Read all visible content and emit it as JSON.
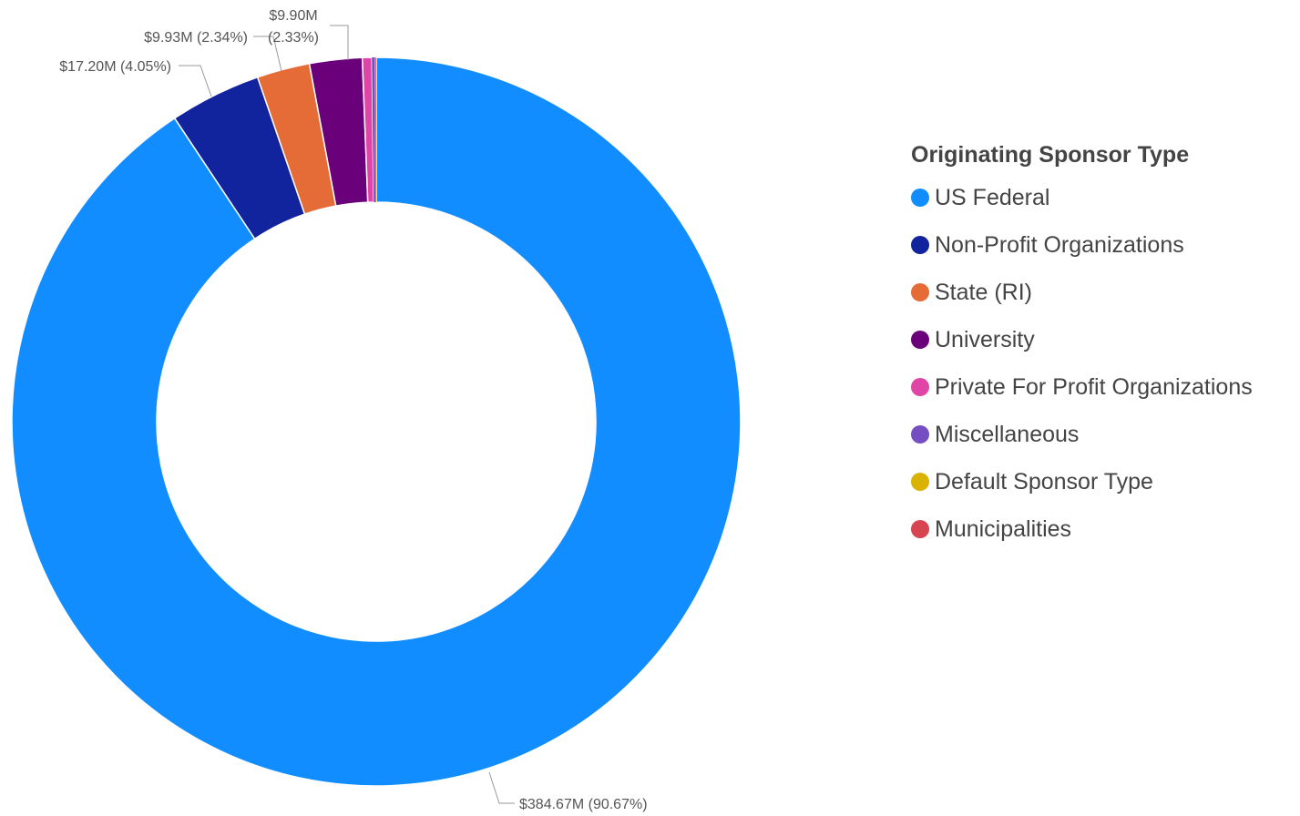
{
  "chart_data": {
    "type": "pie",
    "donut": true,
    "legend_title": "Originating Sponsor Type",
    "legend_position": "right",
    "series": [
      {
        "name": "US Federal",
        "value": 384.67,
        "percent": 90.67,
        "color": "#118DFF",
        "label": "$384.67M (90.67%)"
      },
      {
        "name": "Non-Profit Organizations",
        "value": 17.2,
        "percent": 4.05,
        "color": "#12239E",
        "label": "$17.20M (4.05%)"
      },
      {
        "name": "State (RI)",
        "value": 9.93,
        "percent": 2.34,
        "color": "#E66C37",
        "label": "$9.93M (2.34%)"
      },
      {
        "name": "University",
        "value": 9.9,
        "percent": 2.33,
        "color": "#6B007B",
        "label_lines": [
          "$9.90M",
          "(2.33%)"
        ]
      },
      {
        "name": "Private For Profit Organizations",
        "percent": 0.42,
        "color": "#E044A7"
      },
      {
        "name": "Miscellaneous",
        "percent": 0.12,
        "color": "#744EC2"
      },
      {
        "name": "Default Sponsor Type",
        "percent": 0.04,
        "color": "#D9B300"
      },
      {
        "name": "Municipalities",
        "percent": 0.03,
        "color": "#D64550"
      }
    ]
  }
}
